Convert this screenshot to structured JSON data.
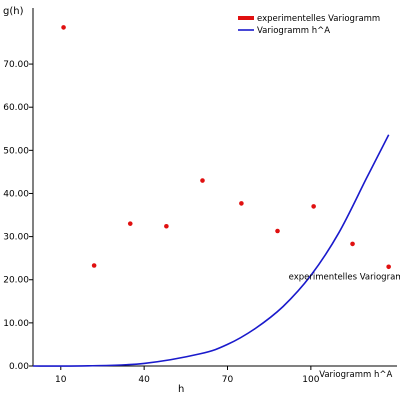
{
  "chart_data": {
    "type": "scatter",
    "xlabel": "h",
    "ylabel": "g(h)",
    "xlim": [
      0,
      131
    ],
    "ylim": [
      0,
      83
    ],
    "x_ticks": [
      10,
      40,
      70,
      100
    ],
    "y_ticks": [
      0,
      10,
      20,
      30,
      40,
      50,
      60,
      70
    ],
    "x_tick_labels": [
      "10",
      "40",
      "70",
      "100"
    ],
    "y_tick_labels": [
      "0.00",
      "10.00",
      "20.00",
      "30.00",
      "40.00",
      "50.00",
      "60.00",
      "70.00"
    ],
    "legend_position": "top-right",
    "series": [
      {
        "name": "experimentelles Variogramm",
        "kind": "points",
        "color": "#e01010",
        "points": [
          {
            "x": 11,
            "y": 78.5
          },
          {
            "x": 22,
            "y": 23.3
          },
          {
            "x": 35,
            "y": 33.0
          },
          {
            "x": 48,
            "y": 32.4
          },
          {
            "x": 61,
            "y": 43.0
          },
          {
            "x": 75,
            "y": 37.7
          },
          {
            "x": 88,
            "y": 31.3
          },
          {
            "x": 101,
            "y": 37.0
          },
          {
            "x": 115,
            "y": 28.3
          },
          {
            "x": 128,
            "y": 23.0
          }
        ]
      },
      {
        "name": "Variogramm h^A",
        "kind": "curve",
        "color": "#1a1acc",
        "points": [
          {
            "x": 0,
            "y": 0.0
          },
          {
            "x": 20,
            "y": 0.05
          },
          {
            "x": 40,
            "y": 0.6
          },
          {
            "x": 60,
            "y": 2.8
          },
          {
            "x": 70,
            "y": 5.0
          },
          {
            "x": 80,
            "y": 8.7
          },
          {
            "x": 90,
            "y": 13.8
          },
          {
            "x": 100,
            "y": 21.0
          },
          {
            "x": 110,
            "y": 30.8
          },
          {
            "x": 120,
            "y": 43.5
          },
          {
            "x": 128,
            "y": 53.6
          }
        ]
      }
    ],
    "annotations": [
      {
        "text": "experimentelles Variogramm",
        "x": 92,
        "y": 20
      },
      {
        "text": "Variogramm h^A",
        "x": 103,
        "y": -2.6
      }
    ]
  }
}
